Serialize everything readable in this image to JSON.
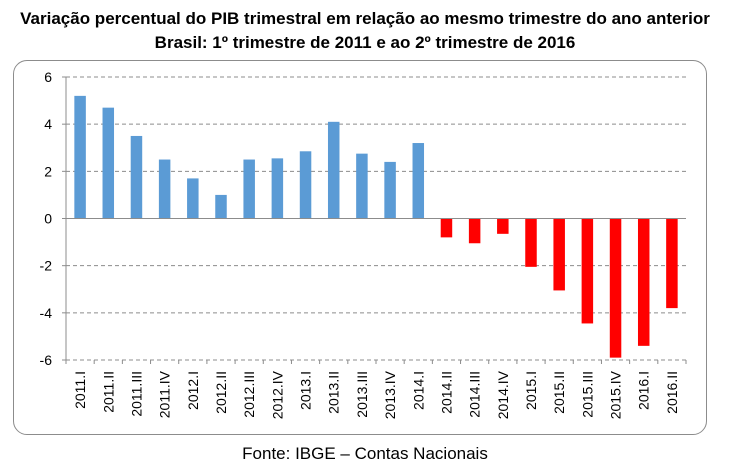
{
  "chart_data": {
    "type": "bar",
    "title": "Variação percentual do PIB trimestral em relação ao mesmo trimestre do ano anterior",
    "subtitle": "Brasil: 1º trimestre de 2011 e ao 2º trimestre de 2016",
    "xlabel": "",
    "ylabel": "",
    "categories": [
      "2011.I",
      "2011.II",
      "2011.III",
      "2011.IV",
      "2012.I",
      "2012.II",
      "2012.III",
      "2012.IV",
      "2013.I",
      "2013.II",
      "2013.III",
      "2013.IV",
      "2014.I",
      "2014.II",
      "2014.III",
      "2014.IV",
      "2015.I",
      "2015.II",
      "2015.III",
      "2015.IV",
      "2016.I",
      "2016.II"
    ],
    "values": [
      5.2,
      4.7,
      3.5,
      2.5,
      1.7,
      1.0,
      2.5,
      2.55,
      2.85,
      4.1,
      2.75,
      2.4,
      3.2,
      -0.8,
      -1.05,
      -0.65,
      -2.05,
      -3.05,
      -4.45,
      -5.9,
      -5.4,
      -3.8
    ],
    "ylim": [
      -6,
      6
    ],
    "yticks": [
      -6,
      -4,
      -2,
      0,
      2,
      4,
      6
    ],
    "grid": true,
    "colors": {
      "positive": "#5b9bd5",
      "negative": "#ff0000",
      "grid": "#8c8c8c"
    }
  },
  "source": "Fonte: IBGE – Contas Nacionais"
}
